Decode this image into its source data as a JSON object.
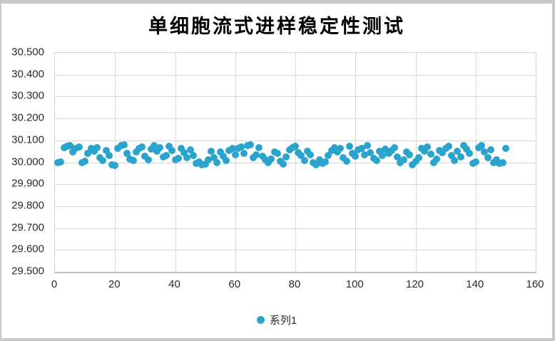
{
  "chart_data": {
    "type": "scatter",
    "title": "单细胞流式进样稳定性测试",
    "xlabel": "",
    "ylabel": "",
    "xlim": [
      0,
      160
    ],
    "ylim": [
      29.5,
      30.5
    ],
    "x_ticks": [
      0,
      20,
      40,
      60,
      80,
      100,
      120,
      140,
      160
    ],
    "x_tick_labels": [
      "0",
      "20",
      "40",
      "60",
      "80",
      "100",
      "120",
      "140",
      "160"
    ],
    "y_ticks": [
      29.5,
      29.6,
      29.7,
      29.8,
      29.9,
      30.0,
      30.1,
      30.2,
      30.3,
      30.4,
      30.5
    ],
    "y_tick_labels": [
      "29.500",
      "29.600",
      "29.700",
      "29.800",
      "29.900",
      "30.000",
      "30.100",
      "30.200",
      "30.300",
      "30.400",
      "30.500"
    ],
    "grid": true,
    "legend_position": "bottom",
    "series": [
      {
        "name": "系列1",
        "color": "#2aa4cd",
        "marker": "circle",
        "x": [
          1,
          2,
          3,
          4,
          5,
          6,
          7,
          8,
          9,
          10,
          11,
          12,
          13,
          14,
          15,
          16,
          17,
          18,
          19,
          20,
          21,
          22,
          23,
          24,
          25,
          26,
          27,
          28,
          29,
          30,
          31,
          32,
          33,
          34,
          35,
          36,
          37,
          38,
          39,
          40,
          41,
          42,
          43,
          44,
          45,
          46,
          47,
          48,
          49,
          50,
          51,
          52,
          53,
          54,
          55,
          56,
          57,
          58,
          59,
          60,
          61,
          62,
          63,
          64,
          65,
          66,
          67,
          68,
          69,
          70,
          71,
          72,
          73,
          74,
          75,
          76,
          77,
          78,
          79,
          80,
          81,
          82,
          83,
          84,
          85,
          86,
          87,
          88,
          89,
          90,
          91,
          92,
          93,
          94,
          95,
          96,
          97,
          98,
          99,
          100,
          101,
          102,
          103,
          104,
          105,
          106,
          107,
          108,
          109,
          110,
          111,
          112,
          113,
          114,
          115,
          116,
          117,
          118,
          119,
          120,
          121,
          122,
          123,
          124,
          125,
          126,
          127,
          128,
          129,
          130,
          131,
          132,
          133,
          134,
          135,
          136,
          137,
          138,
          139,
          140,
          141,
          142,
          143,
          144,
          145,
          146,
          147,
          148,
          149,
          150
        ],
        "y": [
          30.0,
          30.002,
          30.068,
          30.072,
          30.075,
          30.048,
          30.065,
          30.07,
          29.998,
          30.005,
          30.04,
          30.062,
          30.05,
          30.068,
          30.02,
          30.008,
          30.055,
          30.03,
          29.99,
          29.985,
          30.062,
          30.075,
          30.08,
          30.042,
          30.015,
          30.008,
          30.048,
          30.065,
          30.07,
          30.028,
          30.012,
          30.06,
          30.075,
          30.05,
          30.068,
          30.025,
          30.03,
          30.072,
          30.055,
          30.01,
          30.018,
          30.065,
          30.045,
          30.022,
          30.058,
          30.03,
          29.995,
          30.002,
          29.988,
          29.992,
          30.01,
          30.052,
          30.022,
          29.998,
          30.048,
          30.028,
          30.008,
          30.055,
          30.062,
          30.035,
          30.065,
          30.07,
          30.042,
          30.075,
          30.08,
          30.022,
          30.035,
          30.068,
          30.028,
          30.012,
          30.0,
          30.015,
          30.048,
          30.04,
          30.005,
          29.992,
          30.025,
          30.058,
          30.068,
          30.072,
          30.045,
          30.03,
          30.008,
          30.052,
          30.035,
          30.0,
          29.99,
          30.01,
          29.995,
          30.002,
          30.03,
          30.055,
          30.068,
          30.048,
          30.062,
          30.02,
          30.005,
          30.072,
          30.04,
          30.028,
          30.058,
          30.065,
          30.035,
          30.075,
          30.045,
          30.018,
          30.008,
          30.052,
          30.03,
          30.06,
          30.042,
          30.055,
          30.068,
          30.025,
          29.998,
          30.012,
          30.048,
          30.035,
          29.99,
          30.005,
          30.02,
          30.062,
          30.05,
          30.07,
          30.038,
          30.0,
          30.015,
          30.055,
          30.045,
          30.065,
          30.072,
          30.03,
          30.008,
          30.052,
          30.025,
          30.078,
          30.06,
          30.04,
          29.995,
          30.002,
          30.068,
          30.075,
          30.048,
          30.02,
          30.058,
          29.998,
          30.01,
          29.995,
          30.0,
          30.062
        ]
      }
    ],
    "colors": {
      "point": "#2aa4cd",
      "gridline": "#d8d8d8",
      "axis_text": "#2b2b2b",
      "title_text": "#000000",
      "frame": "#c8c8c8",
      "background": "#ffffff"
    }
  }
}
